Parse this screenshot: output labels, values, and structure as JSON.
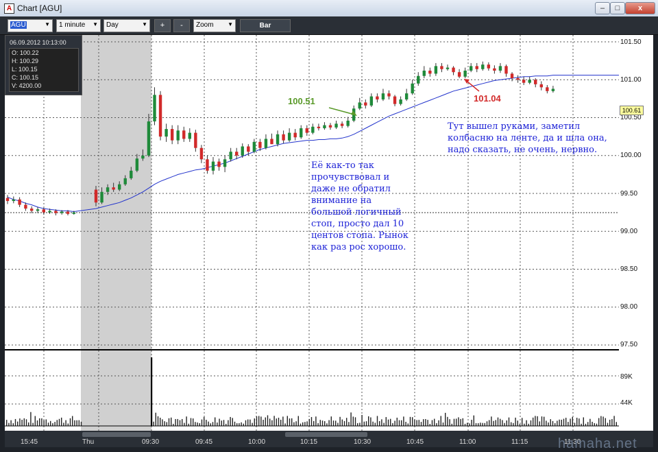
{
  "window": {
    "title": "Chart [AGU]",
    "app_icon_glyph": "A",
    "buttons": [
      "–",
      "□",
      "x"
    ]
  },
  "toolbar": {
    "symbol": "AGU",
    "interval": "1 minute",
    "range": "Day",
    "zoom_in": "+",
    "zoom_out": "-",
    "zoom": "Zoom",
    "bar_type": "Bar"
  },
  "info_box": {
    "datetime": "06.09.2012 10:13:00",
    "lines": [
      "O: 100.22",
      "H: 100.29",
      "L: 100.15",
      "C: 100.15",
      "V: 4200.00"
    ]
  },
  "price_axis": {
    "ticks": [
      "101.50",
      "101.00",
      "100.50",
      "100.00",
      "99.50",
      "99.00",
      "98.50",
      "98.00",
      "97.50"
    ],
    "current_price": "100.61"
  },
  "volume_axis": {
    "ticks": [
      "89K",
      "44K"
    ]
  },
  "time_axis": {
    "ticks": [
      "15:45",
      "Thu",
      "09:30",
      "09:45",
      "10:00",
      "10:15",
      "10:30",
      "10:45",
      "11:00",
      "11:15",
      "11:30"
    ]
  },
  "annotations": {
    "left_price": "100.51",
    "right_price": "101.04",
    "note_left": [
      "Её как-то так",
      "прочувствовал и",
      "даже не обратил",
      "внимание на",
      "большой логичный",
      "стоп, просто дал 10",
      "центов стопа. Рынок",
      "как раз рос хорошо."
    ],
    "note_right": [
      "Тут вышел руками, заметил",
      "колбасню на ленте, да и шла она,",
      "надо сказать, не очень, нервно."
    ]
  },
  "watermark": "hamaha.net",
  "colors": {
    "up_candle": "#1f8a3a",
    "down_candle": "#d12a2a",
    "moving_average": "#2233cc",
    "note_text": "#1a1fd6",
    "green_callout": "#5a9a2a",
    "red_callout": "#d22a2a"
  },
  "chart_data": {
    "type": "candlestick",
    "price_range": [
      97.5,
      101.5
    ],
    "volume_ticks": [
      44000,
      89000
    ],
    "candles": [
      {
        "o": 99.44,
        "c": 99.4,
        "h": 99.48,
        "l": 99.36
      },
      {
        "o": 99.4,
        "c": 99.42,
        "h": 99.46,
        "l": 99.37
      },
      {
        "o": 99.42,
        "c": 99.35,
        "h": 99.45,
        "l": 99.32
      },
      {
        "o": 99.35,
        "c": 99.3,
        "h": 99.38,
        "l": 99.27
      },
      {
        "o": 99.3,
        "c": 99.27,
        "h": 99.33,
        "l": 99.24
      },
      {
        "o": 99.27,
        "c": 99.29,
        "h": 99.32,
        "l": 99.24
      },
      {
        "o": 99.29,
        "c": 99.25,
        "h": 99.31,
        "l": 99.22
      },
      {
        "o": 99.25,
        "c": 99.27,
        "h": 99.3,
        "l": 99.23
      },
      {
        "o": 99.27,
        "c": 99.24,
        "h": 99.29,
        "l": 99.21
      },
      {
        "o": 99.24,
        "c": 99.26,
        "h": 99.28,
        "l": 99.22
      },
      {
        "o": 99.26,
        "c": 99.23,
        "h": 99.28,
        "l": 99.21
      },
      {
        "o": 99.23,
        "c": 99.25,
        "h": 99.27,
        "l": 99.22
      },
      {
        "o": 99.55,
        "c": 99.38,
        "h": 99.6,
        "l": 99.33
      },
      {
        "o": 99.38,
        "c": 99.52,
        "h": 99.58,
        "l": 99.36
      },
      {
        "o": 99.52,
        "c": 99.58,
        "h": 99.62,
        "l": 99.48
      },
      {
        "o": 99.58,
        "c": 99.55,
        "h": 99.64,
        "l": 99.52
      },
      {
        "o": 99.55,
        "c": 99.62,
        "h": 99.66,
        "l": 99.53
      },
      {
        "o": 99.62,
        "c": 99.7,
        "h": 99.74,
        "l": 99.6
      },
      {
        "o": 99.7,
        "c": 99.8,
        "h": 99.85,
        "l": 99.68
      },
      {
        "o": 99.8,
        "c": 99.96,
        "h": 100.02,
        "l": 99.78
      },
      {
        "o": 99.96,
        "c": 100.0,
        "h": 100.08,
        "l": 99.93
      },
      {
        "o": 100.0,
        "c": 100.45,
        "h": 100.55,
        "l": 99.98
      },
      {
        "o": 100.45,
        "c": 100.8,
        "h": 100.9,
        "l": 100.4
      },
      {
        "o": 100.8,
        "c": 100.25,
        "h": 100.85,
        "l": 100.2
      },
      {
        "o": 100.25,
        "c": 100.35,
        "h": 100.42,
        "l": 100.18
      },
      {
        "o": 100.35,
        "c": 100.2,
        "h": 100.4,
        "l": 100.15
      },
      {
        "o": 100.2,
        "c": 100.33,
        "h": 100.4,
        "l": 100.15
      },
      {
        "o": 100.33,
        "c": 100.22,
        "h": 100.38,
        "l": 100.18
      },
      {
        "o": 100.22,
        "c": 100.3,
        "h": 100.36,
        "l": 100.18
      },
      {
        "o": 100.3,
        "c": 100.1,
        "h": 100.34,
        "l": 100.05
      },
      {
        "o": 100.1,
        "c": 99.95,
        "h": 100.14,
        "l": 99.9
      },
      {
        "o": 99.95,
        "c": 99.8,
        "h": 100.0,
        "l": 99.76
      },
      {
        "o": 99.8,
        "c": 99.92,
        "h": 99.98,
        "l": 99.75
      },
      {
        "o": 99.92,
        "c": 99.85,
        "h": 99.96,
        "l": 99.8
      },
      {
        "o": 99.85,
        "c": 99.95,
        "h": 100.0,
        "l": 99.78
      },
      {
        "o": 99.95,
        "c": 100.05,
        "h": 100.1,
        "l": 99.92
      },
      {
        "o": 100.05,
        "c": 100.0,
        "h": 100.1,
        "l": 99.95
      },
      {
        "o": 100.0,
        "c": 100.12,
        "h": 100.16,
        "l": 99.97
      },
      {
        "o": 100.12,
        "c": 100.05,
        "h": 100.15,
        "l": 100.0
      },
      {
        "o": 100.05,
        "c": 100.18,
        "h": 100.22,
        "l": 100.03
      },
      {
        "o": 100.18,
        "c": 100.1,
        "h": 100.22,
        "l": 100.06
      },
      {
        "o": 100.1,
        "c": 100.22,
        "h": 100.28,
        "l": 100.08
      },
      {
        "o": 100.22,
        "c": 100.15,
        "h": 100.29,
        "l": 100.15
      },
      {
        "o": 100.15,
        "c": 100.28,
        "h": 100.33,
        "l": 100.12
      },
      {
        "o": 100.28,
        "c": 100.2,
        "h": 100.33,
        "l": 100.16
      },
      {
        "o": 100.2,
        "c": 100.3,
        "h": 100.36,
        "l": 100.18
      },
      {
        "o": 100.3,
        "c": 100.24,
        "h": 100.35,
        "l": 100.2
      },
      {
        "o": 100.24,
        "c": 100.36,
        "h": 100.4,
        "l": 100.22
      },
      {
        "o": 100.36,
        "c": 100.3,
        "h": 100.4,
        "l": 100.26
      },
      {
        "o": 100.3,
        "c": 100.38,
        "h": 100.42,
        "l": 100.28
      },
      {
        "o": 100.38,
        "c": 100.36,
        "h": 100.42,
        "l": 100.33
      },
      {
        "o": 100.36,
        "c": 100.4,
        "h": 100.44,
        "l": 100.34
      },
      {
        "o": 100.4,
        "c": 100.37,
        "h": 100.43,
        "l": 100.34
      },
      {
        "o": 100.37,
        "c": 100.42,
        "h": 100.46,
        "l": 100.35
      },
      {
        "o": 100.42,
        "c": 100.39,
        "h": 100.45,
        "l": 100.36
      },
      {
        "o": 100.39,
        "c": 100.46,
        "h": 100.51,
        "l": 100.37
      },
      {
        "o": 100.46,
        "c": 100.62,
        "h": 100.66,
        "l": 100.44
      },
      {
        "o": 100.62,
        "c": 100.7,
        "h": 100.76,
        "l": 100.6
      },
      {
        "o": 100.7,
        "c": 100.66,
        "h": 100.74,
        "l": 100.62
      },
      {
        "o": 100.66,
        "c": 100.78,
        "h": 100.82,
        "l": 100.64
      },
      {
        "o": 100.78,
        "c": 100.74,
        "h": 100.82,
        "l": 100.7
      },
      {
        "o": 100.74,
        "c": 100.82,
        "h": 100.88,
        "l": 100.72
      },
      {
        "o": 100.82,
        "c": 100.78,
        "h": 100.86,
        "l": 100.74
      },
      {
        "o": 100.78,
        "c": 100.68,
        "h": 100.8,
        "l": 100.65
      },
      {
        "o": 100.68,
        "c": 100.74,
        "h": 100.78,
        "l": 100.66
      },
      {
        "o": 100.74,
        "c": 100.82,
        "h": 100.88,
        "l": 100.72
      },
      {
        "o": 100.82,
        "c": 100.95,
        "h": 101.0,
        "l": 100.8
      },
      {
        "o": 100.95,
        "c": 101.05,
        "h": 101.1,
        "l": 100.92
      },
      {
        "o": 101.05,
        "c": 101.12,
        "h": 101.18,
        "l": 101.02
      },
      {
        "o": 101.12,
        "c": 101.08,
        "h": 101.16,
        "l": 101.04
      },
      {
        "o": 101.08,
        "c": 101.18,
        "h": 101.22,
        "l": 101.05
      },
      {
        "o": 101.18,
        "c": 101.14,
        "h": 101.22,
        "l": 101.1
      },
      {
        "o": 101.14,
        "c": 101.16,
        "h": 101.2,
        "l": 101.12
      },
      {
        "o": 101.16,
        "c": 101.1,
        "h": 101.18,
        "l": 101.06
      },
      {
        "o": 101.1,
        "c": 101.04,
        "h": 101.14,
        "l": 101.02
      },
      {
        "o": 101.04,
        "c": 101.12,
        "h": 101.16,
        "l": 101.02
      },
      {
        "o": 101.12,
        "c": 101.18,
        "h": 101.22,
        "l": 101.1
      },
      {
        "o": 101.18,
        "c": 101.14,
        "h": 101.22,
        "l": 101.1
      },
      {
        "o": 101.14,
        "c": 101.2,
        "h": 101.24,
        "l": 101.12
      },
      {
        "o": 101.2,
        "c": 101.15,
        "h": 101.23,
        "l": 101.12
      },
      {
        "o": 101.15,
        "c": 101.12,
        "h": 101.19,
        "l": 101.08
      },
      {
        "o": 101.12,
        "c": 101.18,
        "h": 101.22,
        "l": 101.09
      },
      {
        "o": 101.18,
        "c": 101.08,
        "h": 101.2,
        "l": 101.04
      },
      {
        "o": 101.08,
        "c": 101.02,
        "h": 101.1,
        "l": 100.98
      },
      {
        "o": 101.02,
        "c": 101.0,
        "h": 101.06,
        "l": 100.96
      },
      {
        "o": 101.0,
        "c": 100.96,
        "h": 101.04,
        "l": 100.93
      },
      {
        "o": 100.96,
        "c": 101.0,
        "h": 101.04,
        "l": 100.94
      },
      {
        "o": 101.0,
        "c": 100.94,
        "h": 101.02,
        "l": 100.9
      },
      {
        "o": 100.94,
        "c": 100.9,
        "h": 100.98,
        "l": 100.86
      },
      {
        "o": 100.9,
        "c": 100.85,
        "h": 100.93,
        "l": 100.82
      },
      {
        "o": 100.85,
        "c": 100.88,
        "h": 100.92,
        "l": 100.83
      }
    ],
    "moving_average": [
      99.45,
      99.42,
      99.4,
      99.37,
      99.35,
      99.32,
      99.3,
      99.29,
      99.28,
      99.27,
      99.27,
      99.26,
      99.3,
      99.32,
      99.34,
      99.36,
      99.38,
      99.41,
      99.44,
      99.48,
      99.52,
      99.57,
      99.62,
      99.66,
      99.69,
      99.72,
      99.75,
      99.77,
      99.79,
      99.81,
      99.82,
      99.84,
      99.86,
      99.88,
      99.9,
      99.93,
      99.96,
      99.99,
      100.02,
      100.05,
      100.08,
      100.1,
      100.12,
      100.14,
      100.16,
      100.17,
      100.18,
      100.19,
      100.2,
      100.2,
      100.21,
      100.21,
      100.22,
      100.22,
      100.23,
      100.25,
      100.28,
      100.32,
      100.36,
      100.4,
      100.44,
      100.48,
      100.52,
      100.55,
      100.58,
      100.61,
      100.64,
      100.67,
      100.7,
      100.73,
      100.76,
      100.79,
      100.82,
      100.85,
      100.87,
      100.89,
      100.91,
      100.93,
      100.95,
      100.97,
      100.99,
      101.0,
      101.01,
      101.02,
      101.03,
      101.04,
      101.04,
      101.05,
      101.05,
      101.05,
      101.06,
      101.06,
      101.06,
      101.06
    ]
  }
}
